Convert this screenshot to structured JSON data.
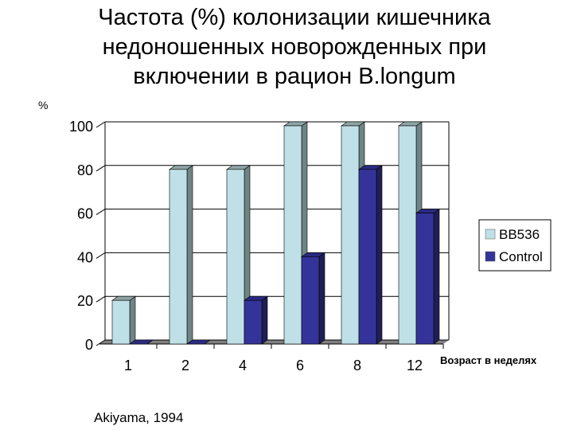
{
  "chart_data": {
    "type": "bar",
    "title": "Частота (%) колонизации кишечника недоношенных новорожденных при включении в рацион B.longum",
    "title_lines": [
      "Частота (%) колонизации кишечника",
      "недоношенных новорожденных при",
      "включении в рацион B.longum"
    ],
    "ylabel": "%",
    "xlabel": "Возраст в неделях",
    "categories": [
      "1",
      "2",
      "4",
      "6",
      "8",
      "12"
    ],
    "ylim": [
      0,
      100
    ],
    "yticks": [
      0,
      20,
      40,
      60,
      80,
      100
    ],
    "grid": true,
    "style": "3d-column",
    "legend_position": "right",
    "series": [
      {
        "name": "BB536",
        "values": [
          20,
          80,
          80,
          100,
          100,
          100
        ],
        "color": "#bfe0e6"
      },
      {
        "name": "Control",
        "values": [
          0,
          0,
          20,
          40,
          80,
          60
        ],
        "color": "#333399"
      }
    ],
    "annotation": "Akiyama, 1994"
  }
}
